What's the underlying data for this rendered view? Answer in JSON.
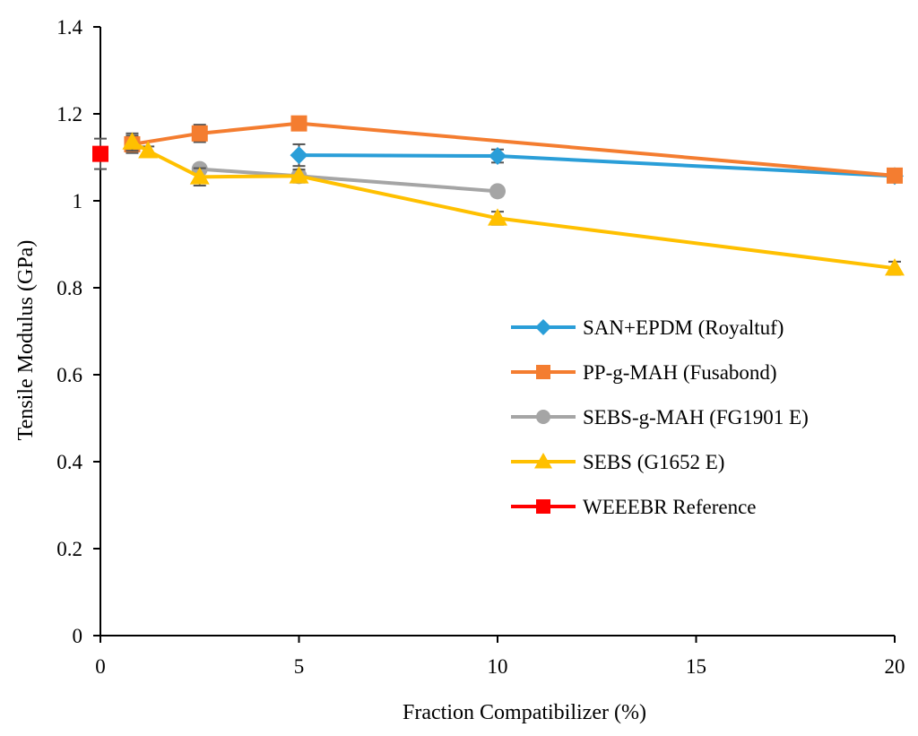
{
  "chart_data": {
    "type": "line",
    "title": "",
    "xlabel": "Fraction Compatibilizer (%)",
    "ylabel": "Tensile Modulus (GPa)",
    "xlim": [
      0,
      20
    ],
    "ylim": [
      0,
      1.4
    ],
    "xticks": [
      0,
      5,
      10,
      15,
      20
    ],
    "yticks": [
      0,
      0.2,
      0.4,
      0.6,
      0.8,
      1,
      1.2,
      1.4
    ],
    "xtick_labels": [
      "0",
      "5",
      "10",
      "15",
      "20"
    ],
    "ytick_labels": [
      "0",
      "0.2",
      "0.4",
      "0.6",
      "0.8",
      "1",
      "1.2",
      "1.4"
    ],
    "grid": false,
    "legend_position": "right",
    "series": [
      {
        "name": "SAN+EPDM (Royaltuf)",
        "color": "#2a9ed8",
        "marker": "diamond",
        "points": [
          {
            "x": 5,
            "y": 1.105,
            "err": 0.025
          },
          {
            "x": 10,
            "y": 1.103,
            "err": 0.015
          },
          {
            "x": 20,
            "y": 1.057,
            "err": 0.01
          }
        ]
      },
      {
        "name": "PP-g-MAH (Fusabond)",
        "color": "#f47d30",
        "marker": "square",
        "points": [
          {
            "x": 0.8,
            "y": 1.13,
            "err": 0.02
          },
          {
            "x": 2.5,
            "y": 1.155,
            "err": 0.02
          },
          {
            "x": 5,
            "y": 1.178,
            "err": 0.015
          },
          {
            "x": 20,
            "y": 1.058,
            "err": 0.01
          }
        ]
      },
      {
        "name": "SEBS-g-MAH (FG1901 E)",
        "color": "#a5a5a5",
        "marker": "circle",
        "points": [
          {
            "x": 2.5,
            "y": 1.073,
            "err": 0.01
          },
          {
            "x": 5,
            "y": 1.057,
            "err": 0.012
          },
          {
            "x": 10,
            "y": 1.022,
            "err": 0.01
          }
        ]
      },
      {
        "name": "SEBS (G1652 E)",
        "color": "#ffc000",
        "marker": "triangle",
        "points": [
          {
            "x": 0.8,
            "y": 1.135,
            "err": 0.02
          },
          {
            "x": 1.2,
            "y": 1.115,
            "err": 0.01
          },
          {
            "x": 2.5,
            "y": 1.055,
            "err": 0.02
          },
          {
            "x": 5,
            "y": 1.057,
            "err": 0.015
          },
          {
            "x": 10,
            "y": 0.96,
            "err": 0.015
          },
          {
            "x": 20,
            "y": 0.845,
            "err": 0.015
          }
        ]
      },
      {
        "name": "WEEEBR Reference",
        "color": "#ff0000",
        "marker": "square",
        "points": [
          {
            "x": 0,
            "y": 1.108,
            "err": 0.035
          }
        ]
      }
    ]
  }
}
